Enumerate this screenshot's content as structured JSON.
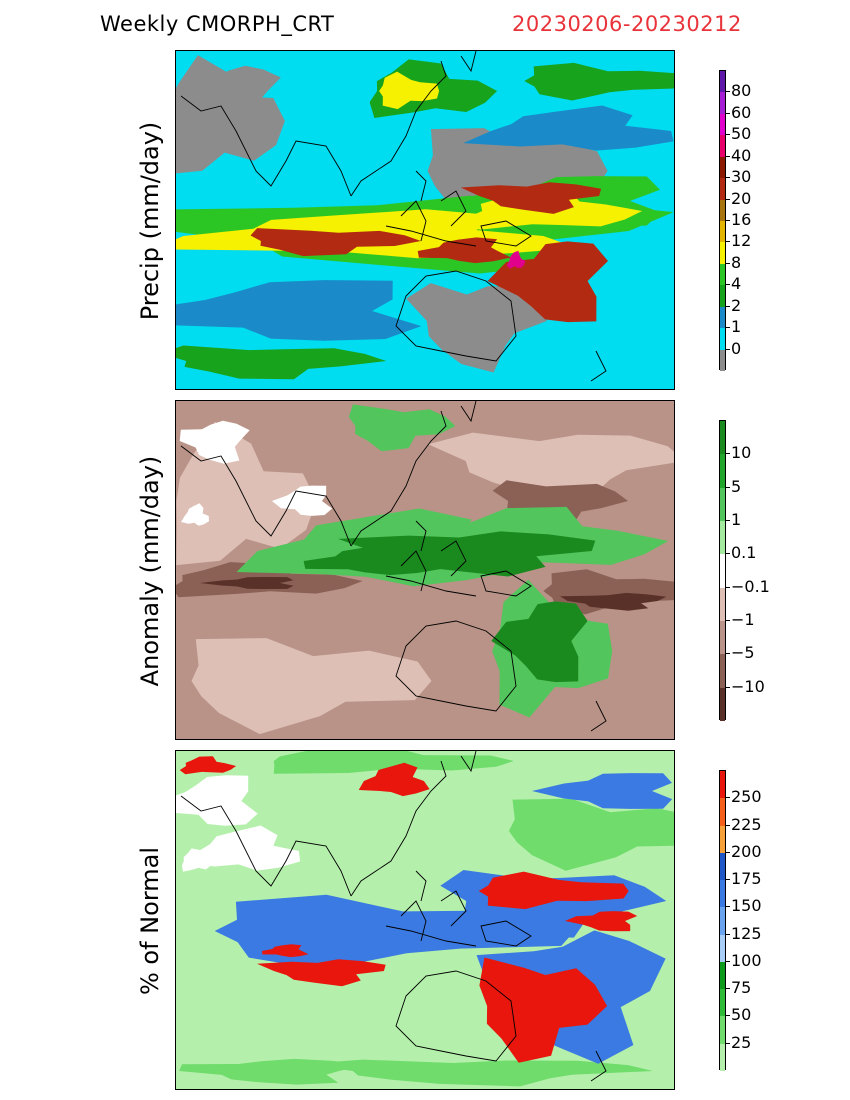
{
  "header": {
    "title": "Weekly  CMORPH_CRT",
    "date_range": "20230206-20230212",
    "date_color": "#e8333a"
  },
  "panels": [
    {
      "id": "precip",
      "ylabel": "Precip  (mm/day)",
      "colorbar": {
        "colors": [
          "#5e17a8",
          "#a61ed3",
          "#e000cc",
          "#e8006a",
          "#8c1a00",
          "#b22a12",
          "#a8740e",
          "#e2b400",
          "#f5f100",
          "#2cc624",
          "#17a31b",
          "#1a8ac9",
          "#00dcf0",
          "#8c8c8c"
        ],
        "labels": [
          "80",
          "60",
          "50",
          "40",
          "30",
          "20",
          "16",
          "12",
          "8",
          "4",
          "2",
          "1",
          "0"
        ]
      }
    },
    {
      "id": "anomaly",
      "ylabel": "Anomaly  (mm/day)",
      "colorbar": {
        "colors": [
          "#1a8a1f",
          "#21a52a",
          "#52c55c",
          "#a3ea9e",
          "#ffffff",
          "#ddbfb5",
          "#b99387",
          "#8b6156",
          "#5a3128"
        ],
        "labels": [
          "10",
          "5",
          "1",
          "0.1",
          "−0.1",
          "−1",
          "−5",
          "−10"
        ]
      }
    },
    {
      "id": "percent",
      "ylabel": "%  of  Normal",
      "colorbar": {
        "colors": [
          "#e8160c",
          "#f4601a",
          "#f6a03a",
          "#1f57c8",
          "#3b7ae2",
          "#6aa3ee",
          "#a8cdf7",
          "#0c9a1a",
          "#2fba38",
          "#6fdc6c",
          "#b4f0ab"
        ],
        "labels": [
          "250",
          "225",
          "200",
          "175",
          "150",
          "125",
          "100",
          "75",
          "50",
          "25"
        ]
      }
    }
  ]
}
